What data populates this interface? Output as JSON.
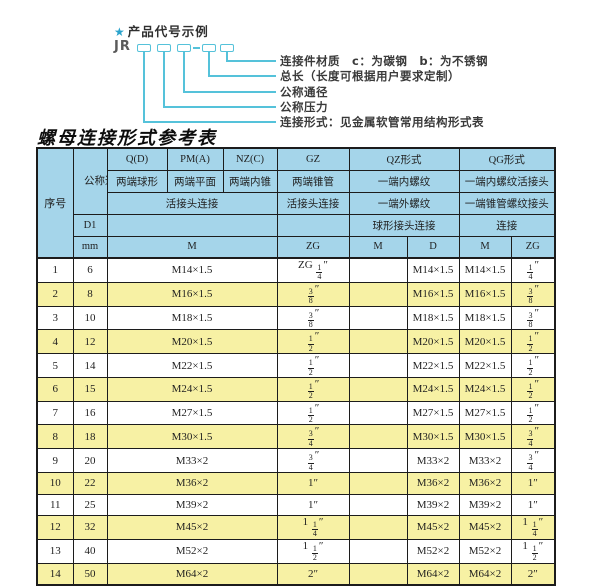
{
  "diagram": {
    "star": "★",
    "title": "产品代号示例",
    "prefix": "JR",
    "labels": [
      "连接件材质　c：为碳钢　b：为不锈钢",
      "总长（长度可根据用户要求定制）",
      "公称通径",
      "公称压力",
      "连接形式：见金属软管常用结构形式表"
    ]
  },
  "table": {
    "title": "螺母连接形式参考表",
    "header": {
      "seq": "序号",
      "dn": "公称通径",
      "d1": "D1",
      "mm": "mm",
      "q": "Q(D)",
      "q_desc": "两端球形",
      "pm": "PM(A)",
      "pm_desc": "两端平面",
      "nz": "NZ(C)",
      "nz_desc": "两端内锥",
      "gz": "GZ",
      "gz_desc": "两端锥管",
      "qz": "QZ形式",
      "qz_desc1": "一端内螺纹",
      "qz_desc2": "一端外螺纹",
      "qz_desc3": "球形接头连接",
      "qg": "QG形式",
      "qg_desc1": "一端内螺纹活接头",
      "qg_desc2": "一端锥管螺纹接头",
      "qg_desc3": "连接",
      "union_left": "活接头连接",
      "union_gz": "活接头连接",
      "unit_m": "M",
      "unit_zg": "ZG",
      "unit_qz_m": "M",
      "unit_qz_d": "D",
      "unit_qg_m": "M",
      "unit_qg_zg": "ZG"
    },
    "rows": [
      {
        "seq": "1",
        "dn": "6",
        "m": "M14×1.5",
        "zg": "ZG 1/4″",
        "qz_m": "",
        "qz_d": "M14×1.5",
        "qg_m": "M14×1.5",
        "qg_zg": "1/4″"
      },
      {
        "seq": "2",
        "dn": "8",
        "m": "M16×1.5",
        "zg": "3/8″",
        "qz_m": "",
        "qz_d": "M16×1.5",
        "qg_m": "M16×1.5",
        "qg_zg": "3/8″"
      },
      {
        "seq": "3",
        "dn": "10",
        "m": "M18×1.5",
        "zg": "3/8″",
        "qz_m": "",
        "qz_d": "M18×1.5",
        "qg_m": "M18×1.5",
        "qg_zg": "3/8″"
      },
      {
        "seq": "4",
        "dn": "12",
        "m": "M20×1.5",
        "zg": "1/2″",
        "qz_m": "",
        "qz_d": "M20×1.5",
        "qg_m": "M20×1.5",
        "qg_zg": "1/2″"
      },
      {
        "seq": "5",
        "dn": "14",
        "m": "M22×1.5",
        "zg": "1/2″",
        "qz_m": "",
        "qz_d": "M22×1.5",
        "qg_m": "M22×1.5",
        "qg_zg": "1/2″"
      },
      {
        "seq": "6",
        "dn": "15",
        "m": "M24×1.5",
        "zg": "1/2″",
        "qz_m": "",
        "qz_d": "M24×1.5",
        "qg_m": "M24×1.5",
        "qg_zg": "1/2″"
      },
      {
        "seq": "7",
        "dn": "16",
        "m": "M27×1.5",
        "zg": "1/2″",
        "qz_m": "",
        "qz_d": "M27×1.5",
        "qg_m": "M27×1.5",
        "qg_zg": "1/2″"
      },
      {
        "seq": "8",
        "dn": "18",
        "m": "M30×1.5",
        "zg": "3/4″",
        "qz_m": "",
        "qz_d": "M30×1.5",
        "qg_m": "M30×1.5",
        "qg_zg": "3/4″"
      },
      {
        "seq": "9",
        "dn": "20",
        "m": "M33×2",
        "zg": "3/4″",
        "qz_m": "",
        "qz_d": "M33×2",
        "qg_m": "M33×2",
        "qg_zg": "3/4″"
      },
      {
        "seq": "10",
        "dn": "22",
        "m": "M36×2",
        "zg": "1″",
        "qz_m": "",
        "qz_d": "M36×2",
        "qg_m": "M36×2",
        "qg_zg": "1″"
      },
      {
        "seq": "11",
        "dn": "25",
        "m": "M39×2",
        "zg": "1″",
        "qz_m": "",
        "qz_d": "M39×2",
        "qg_m": "M39×2",
        "qg_zg": "1″"
      },
      {
        "seq": "12",
        "dn": "32",
        "m": "M45×2",
        "zg": "1 1/4″",
        "qz_m": "",
        "qz_d": "M45×2",
        "qg_m": "M45×2",
        "qg_zg": "1 1/4″"
      },
      {
        "seq": "13",
        "dn": "40",
        "m": "M52×2",
        "zg": "1 1/2″",
        "qz_m": "",
        "qz_d": "M52×2",
        "qg_m": "M52×2",
        "qg_zg": "1 1/2″"
      },
      {
        "seq": "14",
        "dn": "50",
        "m": "M64×2",
        "zg": "2″",
        "qz_m": "",
        "qz_d": "M64×2",
        "qg_m": "M64×2",
        "qg_zg": "2″"
      }
    ]
  },
  "colors": {
    "header_bg": "#a5d5ea",
    "row_alt_bg": "#f7f1a4",
    "row_bg": "#ffffff",
    "border": "#1c1c1c",
    "accent_cyan": "#55c2da",
    "star_blue": "#2aa3cc"
  }
}
